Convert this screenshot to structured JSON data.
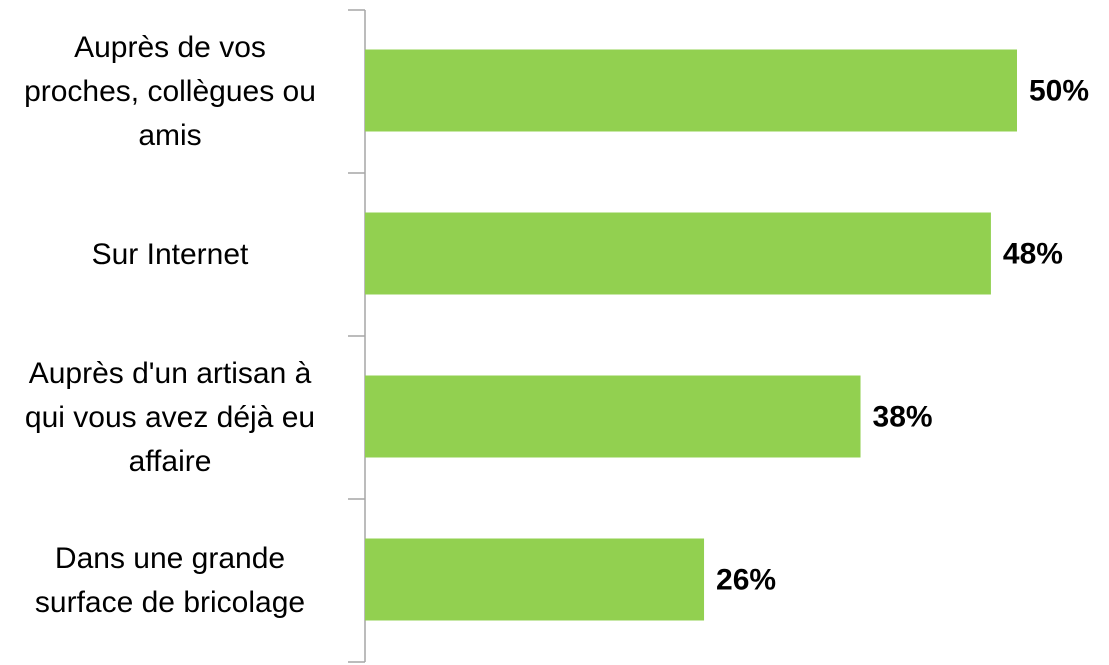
{
  "chart_data": {
    "type": "bar",
    "orientation": "horizontal",
    "categories": [
      "Auprès de vos proches, collègues ou amis",
      "Sur Internet",
      "Auprès d'un artisan à qui vous avez déjà eu affaire",
      "Dans une grande surface de bricolage"
    ],
    "values": [
      50,
      48,
      38,
      26
    ],
    "value_labels": [
      "50%",
      "48%",
      "38%",
      "26%"
    ],
    "color": "#92d050"
  }
}
